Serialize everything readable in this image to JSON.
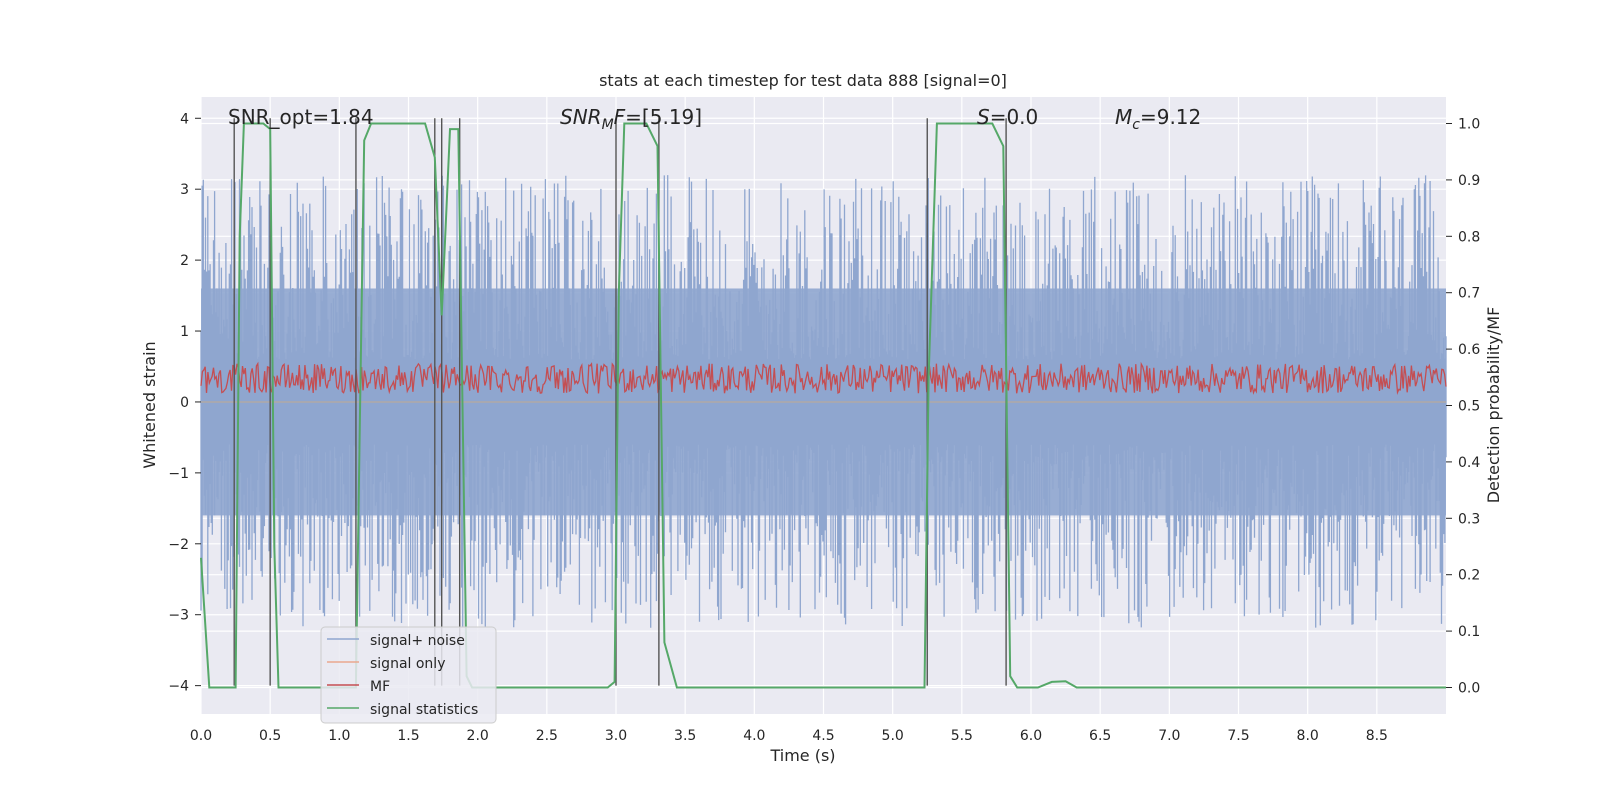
{
  "chart_data": {
    "type": "line",
    "title": "stats at each timestep for test data 888 [signal=0]",
    "xlabel": "Time (s)",
    "ylabel": "Whitened strain",
    "y2label": "Detection probability/MF",
    "xlim": [
      0.0,
      9.0
    ],
    "ylim": [
      -4.4,
      4.3
    ],
    "y2lim": [
      -0.047,
      1.047
    ],
    "xticks": [
      "0.0",
      "0.5",
      "1.0",
      "1.5",
      "2.0",
      "2.5",
      "3.0",
      "3.5",
      "4.0",
      "4.5",
      "5.0",
      "5.5",
      "6.0",
      "6.5",
      "7.0",
      "7.5",
      "8.0",
      "8.5"
    ],
    "yticks": [
      "4",
      "3",
      "2",
      "1",
      "0",
      "−1",
      "−2",
      "−3",
      "−4"
    ],
    "y2ticks": [
      "1.0",
      "0.9",
      "0.8",
      "0.7",
      "0.6",
      "0.5",
      "0.4",
      "0.3",
      "0.2",
      "0.1",
      "0.0"
    ],
    "annotations": {
      "snr_opt": "SNR_opt=1.84",
      "snr_mf_sym": "SNR",
      "snr_mf_sub": "M",
      "snr_mf_sym2": "F",
      "snr_mf_val": "=[5.19]",
      "s_sym": "S",
      "s_val": "=0.0",
      "mc_sym": "M",
      "mc_sub": "c",
      "mc_val": "=9.12"
    },
    "legend": {
      "placement": "lower-left",
      "entries": [
        {
          "label": "signal+ noise",
          "color": "#8fa6cf"
        },
        {
          "label": "signal only",
          "color": "#eaa88e"
        },
        {
          "label": "MF",
          "color": "#c44e52"
        },
        {
          "label": "signal statistics",
          "color": "#55a868"
        }
      ]
    },
    "series": [
      {
        "name": "signal statistics",
        "axis": "right",
        "color": "#55a868",
        "points": [
          [
            0.0,
            0.23
          ],
          [
            0.06,
            0.0
          ],
          [
            0.25,
            0.0
          ],
          [
            0.28,
            0.8
          ],
          [
            0.31,
            1.0
          ],
          [
            0.45,
            1.0
          ],
          [
            0.5,
            0.99
          ],
          [
            0.53,
            0.25
          ],
          [
            0.56,
            0.0
          ],
          [
            1.12,
            0.0
          ],
          [
            1.15,
            0.5
          ],
          [
            1.18,
            0.97
          ],
          [
            1.23,
            1.0
          ],
          [
            1.62,
            1.0
          ],
          [
            1.69,
            0.94
          ],
          [
            1.74,
            0.66
          ],
          [
            1.8,
            0.99
          ],
          [
            1.86,
            0.99
          ],
          [
            1.92,
            0.02
          ],
          [
            1.96,
            0.0
          ],
          [
            2.94,
            0.0
          ],
          [
            2.99,
            0.01
          ],
          [
            3.02,
            0.7
          ],
          [
            3.06,
            1.0
          ],
          [
            3.22,
            1.0
          ],
          [
            3.3,
            0.96
          ],
          [
            3.35,
            0.08
          ],
          [
            3.44,
            0.0
          ],
          [
            5.23,
            0.0
          ],
          [
            5.26,
            0.55
          ],
          [
            5.32,
            1.0
          ],
          [
            5.72,
            1.0
          ],
          [
            5.8,
            0.96
          ],
          [
            5.85,
            0.02
          ],
          [
            5.9,
            0.0
          ],
          [
            6.05,
            0.0
          ],
          [
            6.15,
            0.01
          ],
          [
            6.25,
            0.011
          ],
          [
            6.33,
            0.0
          ],
          [
            9.0,
            0.0
          ]
        ]
      }
    ],
    "vertical_lines": [
      0.24,
      0.5,
      1.12,
      1.69,
      1.74,
      1.87,
      3.0,
      3.31,
      5.25,
      5.82
    ]
  }
}
